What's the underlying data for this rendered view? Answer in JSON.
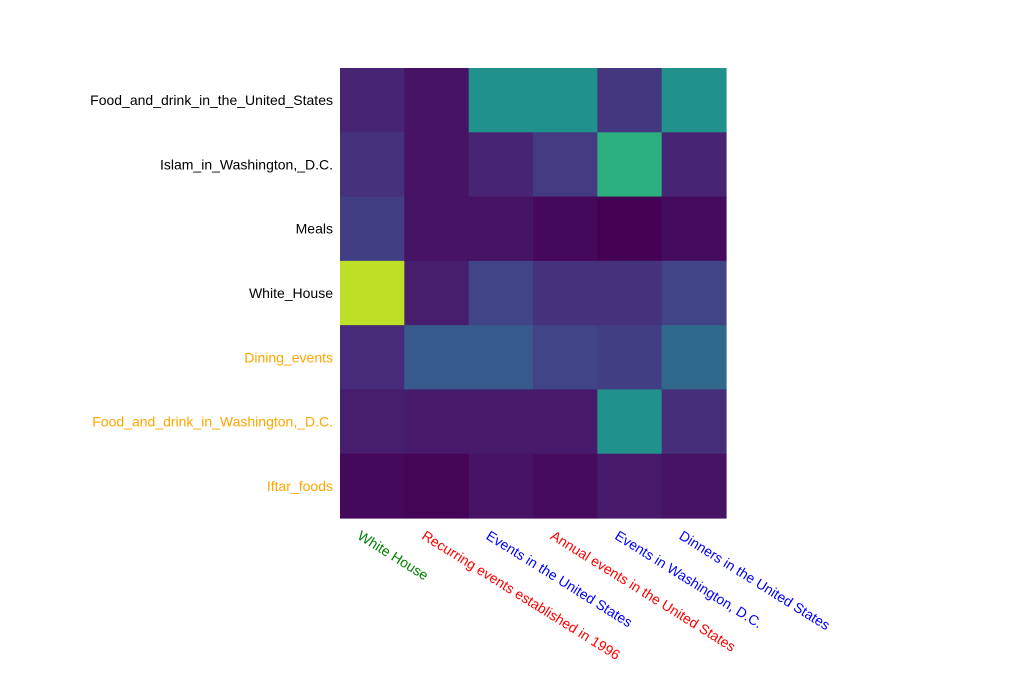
{
  "chart_data": {
    "type": "heatmap",
    "title": "",
    "xlabel": "",
    "ylabel": "",
    "colormap": "viridis",
    "value_range": [
      0,
      1
    ],
    "x_categories": [
      {
        "label": "White House",
        "color": "#008000"
      },
      {
        "label": "Recurring events established in 1996",
        "color": "#ff0000"
      },
      {
        "label": "Events in the United States",
        "color": "#0000ff"
      },
      {
        "label": "Annual events in the United States",
        "color": "#ff0000"
      },
      {
        "label": "Events in Washington, D.C.",
        "color": "#0000ff"
      },
      {
        "label": "Dinners in the United States",
        "color": "#0000ff"
      }
    ],
    "y_categories": [
      {
        "label": "Food_and_drink_in_the_United_States",
        "color": "#000000"
      },
      {
        "label": "Islam_in_Washington,_D.C.",
        "color": "#000000"
      },
      {
        "label": "Meals",
        "color": "#000000"
      },
      {
        "label": "White_House",
        "color": "#000000"
      },
      {
        "label": "Dining_events",
        "color": "#ffa500"
      },
      {
        "label": "Food_and_drink_in_Washington,_D.C.",
        "color": "#ffa500"
      },
      {
        "label": "Iftar_foods",
        "color": "#ffa500"
      }
    ],
    "values": [
      [
        0.1,
        0.05,
        0.5,
        0.5,
        0.16,
        0.5
      ],
      [
        0.14,
        0.05,
        0.1,
        0.17,
        0.63,
        0.1
      ],
      [
        0.18,
        0.05,
        0.05,
        0.02,
        0.0,
        0.03
      ],
      [
        0.9,
        0.08,
        0.2,
        0.14,
        0.14,
        0.2
      ],
      [
        0.12,
        0.28,
        0.28,
        0.2,
        0.18,
        0.34
      ],
      [
        0.08,
        0.07,
        0.07,
        0.07,
        0.5,
        0.13
      ],
      [
        0.02,
        0.01,
        0.05,
        0.03,
        0.07,
        0.05
      ]
    ]
  }
}
